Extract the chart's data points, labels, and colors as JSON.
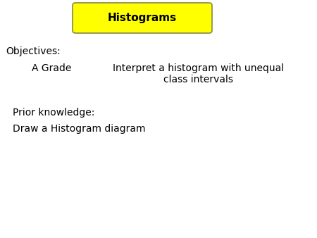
{
  "title": "Histograms",
  "title_bg_color": "#FFFF00",
  "title_border_color": "#888844",
  "title_text_color": "#000000",
  "title_fontsize": 11,
  "title_fontweight": "bold",
  "background_color": "#FFFFFF",
  "objectives_label": "Objectives:",
  "grade_label": "A Grade",
  "grade_description": "Interpret a histogram with unequal\nclass intervals",
  "prior_knowledge_label": "Prior knowledge:",
  "prior_knowledge_item": "Draw a Histogram diagram",
  "text_color": "#000000",
  "text_fontsize": 10,
  "label_fontsize": 10
}
